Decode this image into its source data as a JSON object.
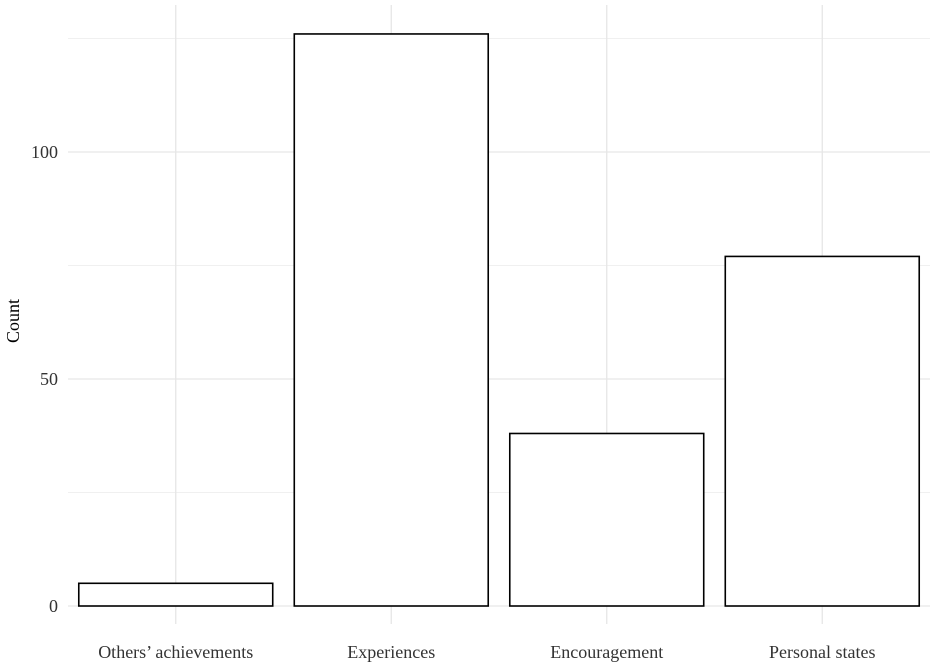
{
  "chart_data": {
    "type": "bar",
    "title": "",
    "xlabel": "",
    "ylabel": "Count",
    "categories": [
      "Others’ achievements",
      "Experiences",
      "Encouragement",
      "Personal states"
    ],
    "values": [
      5,
      126,
      38,
      77
    ],
    "ylim": [
      0,
      132
    ],
    "yticks": [
      0,
      50,
      100
    ],
    "grid": true,
    "legend": "none",
    "colors": {
      "bar_fill": "#ffffff",
      "bar_stroke": "#000000",
      "grid": "#ebebeb"
    }
  }
}
